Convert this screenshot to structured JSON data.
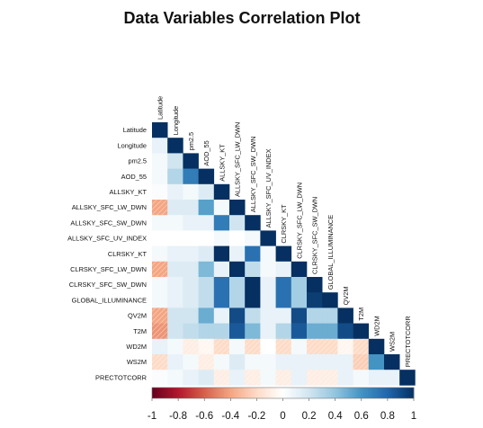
{
  "chart_data": {
    "type": "heatmap",
    "title": "Data Variables Correlation Plot",
    "variables": [
      "Latitude",
      "Longitude",
      "pm2.5",
      "AOD_55",
      "ALLSKY_KT",
      "ALLSKY_SFC_LW_DWN",
      "ALLSKY_SFC_SW_DWN",
      "ALLSKY_SFC_UV_INDEX",
      "CLRSKY_KT",
      "CLRSKY_SFC_LW_DWN",
      "CLRSKY_SFC_SW_DWN",
      "GLOBAL_ILLUMINANCE",
      "QV2M",
      "T2M",
      "WD2M",
      "WS2M",
      "PRECTOTCORR"
    ],
    "lower_triangle": [
      [
        1
      ],
      [
        0.1,
        1
      ],
      [
        0.05,
        0.2,
        1
      ],
      [
        0.05,
        0.3,
        0.7,
        1
      ],
      [
        0.02,
        0.1,
        0.05,
        0.15,
        1
      ],
      [
        -0.4,
        0.15,
        0.15,
        0.55,
        0.05,
        1
      ],
      [
        0.05,
        0.05,
        0.1,
        0.1,
        0.7,
        0.2,
        1
      ],
      [
        0.0,
        0.0,
        0.0,
        0.0,
        0.05,
        0.0,
        0.05,
        1
      ],
      [
        0.05,
        0.1,
        0.1,
        0.15,
        1.0,
        0.1,
        0.75,
        0.05,
        1
      ],
      [
        -0.4,
        0.15,
        0.15,
        0.45,
        0.1,
        1.0,
        0.25,
        0.05,
        0.1,
        1
      ],
      [
        0.05,
        0.1,
        0.15,
        0.25,
        0.75,
        0.3,
        1.0,
        0.1,
        0.75,
        0.35,
        1
      ],
      [
        0.05,
        0.1,
        0.15,
        0.25,
        0.75,
        0.3,
        1.0,
        0.1,
        0.75,
        0.35,
        0.95,
        1
      ],
      [
        -0.4,
        0.2,
        0.2,
        0.5,
        0.1,
        0.9,
        0.25,
        0.1,
        0.1,
        0.9,
        0.3,
        0.3,
        1
      ],
      [
        -0.45,
        0.2,
        0.25,
        0.3,
        0.3,
        0.85,
        0.45,
        0.1,
        0.3,
        0.85,
        0.5,
        0.5,
        0.9,
        1
      ],
      [
        0.1,
        0.05,
        -0.1,
        -0.05,
        -0.2,
        0.05,
        -0.2,
        0.0,
        -0.2,
        0.05,
        -0.2,
        -0.2,
        -0.05,
        -0.2,
        1
      ],
      [
        -0.2,
        0.1,
        0.05,
        -0.1,
        0.05,
        0.15,
        0.05,
        0.05,
        0.1,
        0.1,
        0.1,
        0.1,
        0.1,
        -0.25,
        0.6,
        1
      ],
      [
        0.02,
        0.05,
        0.1,
        0.15,
        -0.1,
        0.1,
        -0.1,
        0.05,
        -0.1,
        0.1,
        -0.1,
        -0.1,
        0.1,
        0.05,
        0.1,
        0.1,
        1
      ]
    ],
    "colorbar": {
      "range": [
        -1,
        1
      ],
      "tick_labels": [
        "-1",
        "-0.8",
        "-0.6",
        "-0.4",
        "-0.2",
        "0",
        "0.2",
        "0.4",
        "0.6",
        "0.8",
        "1"
      ]
    },
    "colors": {
      "negative": "#67001f",
      "neutral": "#ffffff",
      "positive": "#053061"
    }
  }
}
